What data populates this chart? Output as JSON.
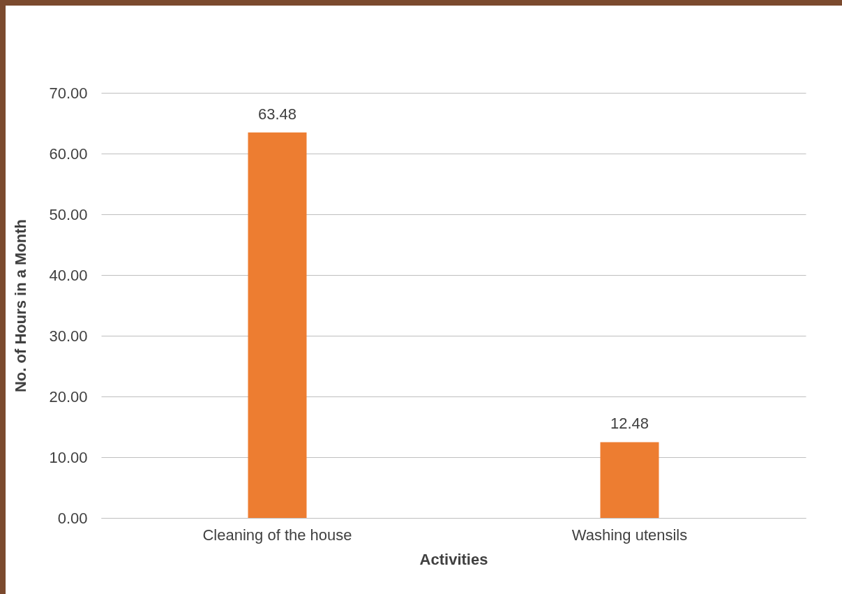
{
  "chart_data": {
    "type": "bar",
    "xlabel": "Activities",
    "ylabel": "No. of Hours in a Month",
    "categories": [
      "Cleaning of the house",
      "Washing utensils"
    ],
    "values": [
      63.48,
      12.48
    ],
    "color": "#ed7d31",
    "ylim": [
      0,
      70
    ],
    "yticks": [
      {
        "value": 0,
        "label": "0.00"
      },
      {
        "value": 10,
        "label": "10.00"
      },
      {
        "value": 20,
        "label": "20.00"
      },
      {
        "value": 30,
        "label": "30.00"
      },
      {
        "value": 40,
        "label": "40.00"
      },
      {
        "value": 50,
        "label": "50.00"
      },
      {
        "value": 60,
        "label": "60.00"
      },
      {
        "value": 70,
        "label": "70.00"
      }
    ],
    "grid": "y",
    "data_labels": true
  }
}
